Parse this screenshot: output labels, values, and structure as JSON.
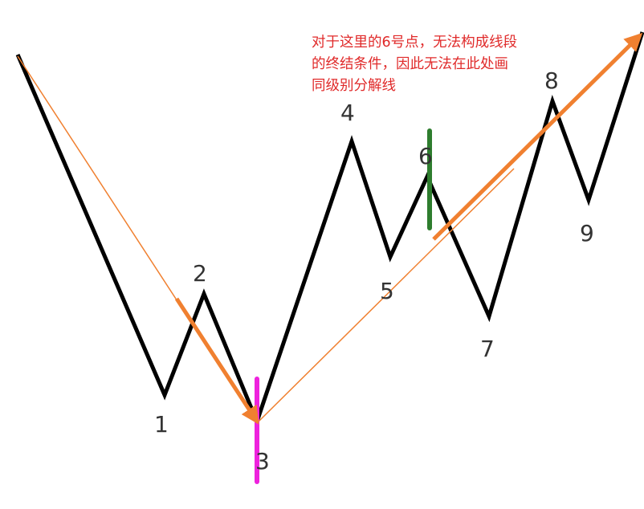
{
  "annotation": {
    "lines": [
      "对于这里的6号点，无法构成线段",
      "的终结条件，因此无法在此处画",
      "同级别分解线"
    ]
  },
  "points": [
    {
      "label": "1"
    },
    {
      "label": "2"
    },
    {
      "label": "3"
    },
    {
      "label": "4"
    },
    {
      "label": "5"
    },
    {
      "label": "6"
    },
    {
      "label": "7"
    },
    {
      "label": "8"
    },
    {
      "label": "9"
    }
  ],
  "colors": {
    "price_line": "#000000",
    "segment_arrow": "#f08030",
    "endpoint_marker": "#ee22dd",
    "rejected_marker": "#2e7d2e",
    "annotation_text": "#e02a2a",
    "point_label": "#333333"
  }
}
